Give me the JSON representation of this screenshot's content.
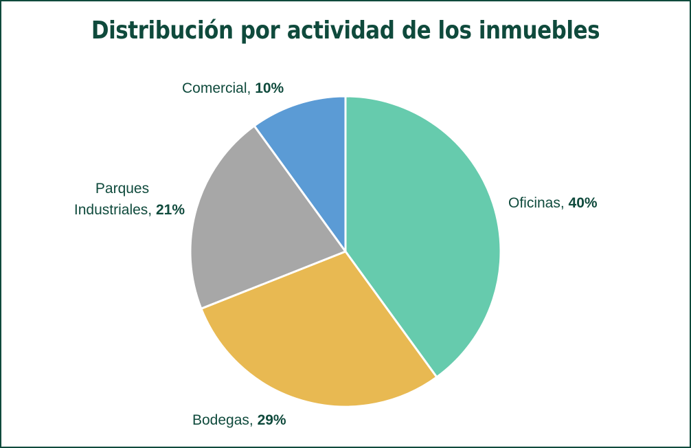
{
  "chart_data": {
    "type": "pie",
    "title": "Distribución por actividad de los inmuebles",
    "start_angle_deg": 0,
    "direction": "clockwise",
    "slices": [
      {
        "label": "Oficinas",
        "value": 40,
        "value_label": "40%",
        "color": "#66cbad"
      },
      {
        "label": "Bodegas",
        "value": 29,
        "value_label": "29%",
        "color": "#e8b952"
      },
      {
        "label": "Parques Industriales",
        "value": 21,
        "value_label": "21%",
        "color": "#a7a7a7"
      },
      {
        "label": "Comercial",
        "value": 10,
        "value_label": "10%",
        "color": "#5b9bd5"
      }
    ]
  }
}
